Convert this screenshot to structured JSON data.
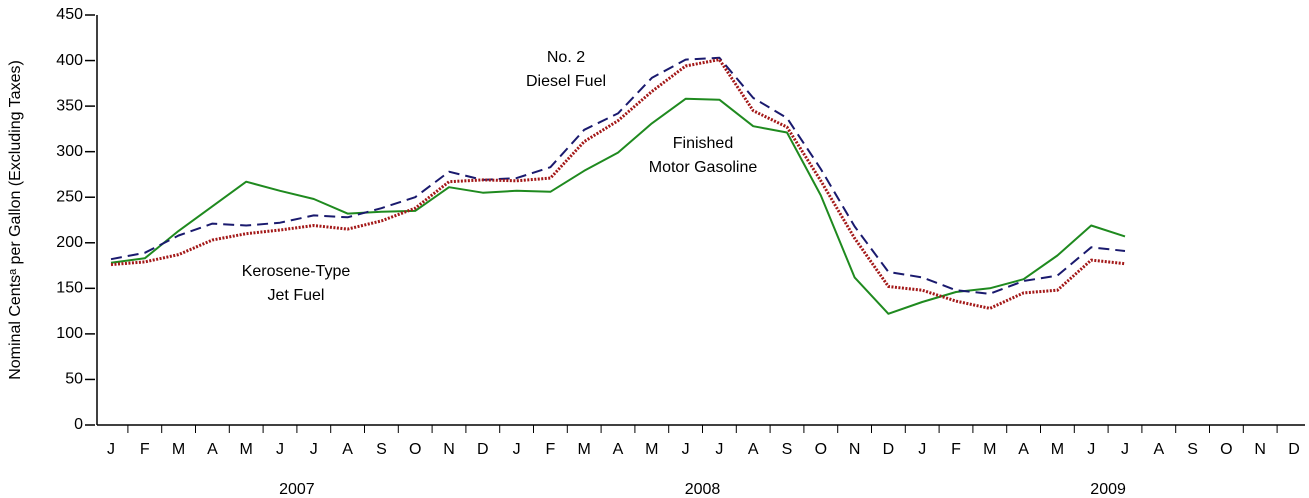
{
  "chart_data": {
    "type": "line",
    "y_label": "Nominal Centsᵃ per Gallon (Excluding Taxes)",
    "categories": [
      "J",
      "F",
      "M",
      "A",
      "M",
      "J",
      "J",
      "A",
      "S",
      "O",
      "N",
      "D",
      "J",
      "F",
      "M",
      "A",
      "M",
      "J",
      "J",
      "A",
      "S",
      "O",
      "N",
      "D",
      "J",
      "F",
      "M",
      "A",
      "M",
      "J",
      "J",
      "A",
      "S",
      "O",
      "N",
      "D"
    ],
    "year_labels": [
      "2007",
      "2008",
      "2009"
    ],
    "ylim": [
      0,
      450
    ],
    "yticks": [
      0,
      50,
      100,
      150,
      200,
      250,
      300,
      350,
      400,
      450
    ],
    "series": [
      {
        "label": [
          "Finished",
          "Motor Gasoline"
        ],
        "color": "#1f8a1f",
        "style": "solid",
        "values": [
          178,
          183,
          213,
          240,
          267,
          257,
          248,
          232,
          234,
          235,
          261,
          255,
          257,
          256,
          279,
          299,
          331,
          358,
          357,
          328,
          321,
          252,
          162,
          122,
          135,
          146,
          150,
          160,
          186,
          219,
          207,
          null,
          null,
          null,
          null,
          null
        ]
      },
      {
        "label": [
          "No. 2",
          "Diesel Fuel"
        ],
        "color": "#1a1a6e",
        "style": "dashed",
        "values": [
          182,
          189,
          208,
          221,
          219,
          222,
          230,
          228,
          238,
          250,
          278,
          269,
          271,
          283,
          324,
          342,
          381,
          401,
          403,
          359,
          337,
          281,
          218,
          168,
          162,
          148,
          144,
          158,
          164,
          195,
          191,
          null,
          null,
          null,
          null,
          null
        ]
      },
      {
        "label": [
          "Kerosene-Type",
          "Jet Fuel"
        ],
        "color": "#a31818",
        "style": "dotted",
        "values": [
          176,
          179,
          187,
          203,
          210,
          214,
          219,
          215,
          224,
          238,
          267,
          269,
          268,
          271,
          311,
          334,
          366,
          394,
          401,
          345,
          327,
          268,
          205,
          152,
          148,
          136,
          128,
          145,
          148,
          181,
          177,
          null,
          null,
          null,
          null,
          null
        ]
      }
    ]
  }
}
